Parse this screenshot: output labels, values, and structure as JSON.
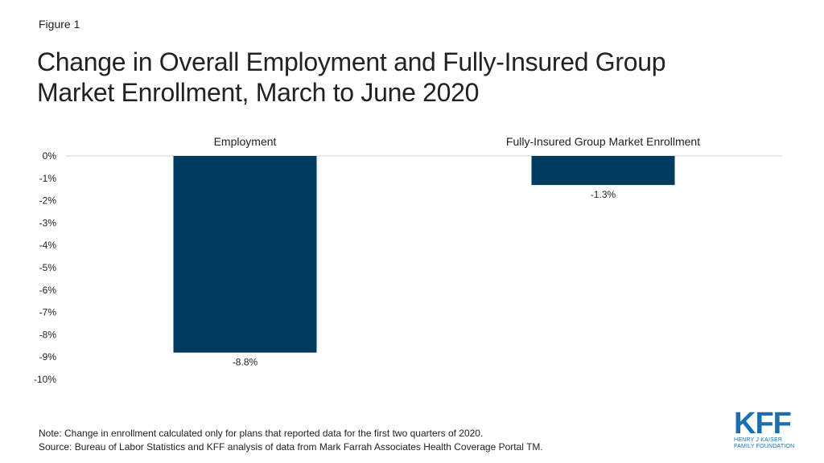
{
  "figure_label": "Figure 1",
  "title_line1": "Change in Overall Employment and Fully-Insured Group",
  "title_line2": "Market Enrollment, March to June 2020",
  "notes": {
    "note": "Note: Change in enrollment calculated only for plans that reported data for the first two quarters of 2020.",
    "source": "Source: Bureau of Labor Statistics and KFF analysis of data from Mark Farrah Associates Health Coverage Portal TM."
  },
  "logo": {
    "text": "KFF",
    "sub_line1": "HENRY J KAISER",
    "sub_line2": "FAMILY FOUNDATION",
    "color": "#1a6fb0"
  },
  "chart_data": {
    "type": "bar",
    "categories": [
      "Employment",
      "Fully-Insured Group Market Enrollment"
    ],
    "values": [
      -8.8,
      -1.3
    ],
    "data_labels": [
      "-8.8%",
      "-1.3%"
    ],
    "ylim": [
      -10,
      0
    ],
    "yticks": [
      "0%",
      "-1%",
      "-2%",
      "-3%",
      "-4%",
      "-5%",
      "-6%",
      "-7%",
      "-8%",
      "-9%",
      "-10%"
    ],
    "bar_color": "#003a5d",
    "grid": false,
    "category_labels_position": "top"
  }
}
